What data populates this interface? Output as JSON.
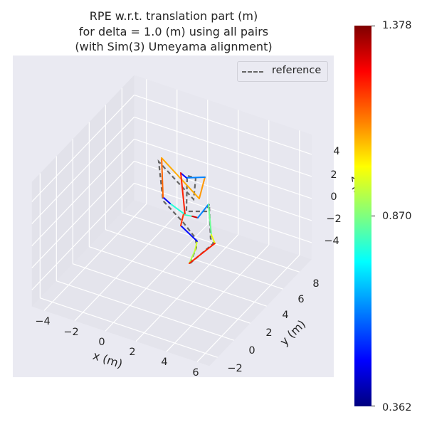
{
  "chart_data": {
    "type": "line3d",
    "title": [
      "RPE w.r.t. translation part (m)",
      "for delta = 1.0 (m) using all pairs",
      "(with Sim(3) Umeyama alignment)"
    ],
    "xlabel": "x (m)",
    "ylabel": "y (m)",
    "zlabel": "z (m)",
    "x_ticks": [
      "−4",
      "−2",
      "0",
      "2",
      "4",
      "6"
    ],
    "y_ticks": [
      "−2",
      "0",
      "2",
      "4",
      "6",
      "8"
    ],
    "z_ticks": [
      "4",
      "2",
      "0",
      "−2",
      "−4"
    ],
    "xlim": [
      -4.8,
      6.8
    ],
    "ylim": [
      -3,
      9.5
    ],
    "zlim": [
      -5.5,
      5.8
    ],
    "grid": true,
    "legend": {
      "placement": "top-right",
      "entries": [
        "reference"
      ]
    },
    "colorbar": {
      "colormap": "jet",
      "min": 0.362,
      "max": 1.378,
      "tick_labels": [
        "1.378",
        "0.870",
        "0.362"
      ]
    },
    "reference": {
      "name": "reference",
      "color": "#666666",
      "style": "dashed",
      "points": [
        [
          2.33,
          3,
          -2.92
        ],
        [
          2.74,
          3,
          -1.3
        ],
        [
          2.7,
          3,
          -0.49
        ],
        [
          1.86,
          3,
          0.61
        ],
        [
          0.56,
          3,
          1.94
        ],
        [
          0.28,
          3,
          5.35
        ],
        [
          2.56,
          3,
          2.99
        ],
        [
          2.7,
          3,
          4.99
        ],
        [
          2.14,
          3,
          4.93
        ],
        [
          2.09,
          3,
          1.68
        ],
        [
          3.4,
          3,
          2.29
        ],
        [
          3.58,
          3,
          3.02
        ],
        [
          3.67,
          3,
          -0.04
        ],
        [
          3.86,
          3,
          -0.4
        ],
        [
          2.33,
          3,
          -2.92
        ]
      ]
    },
    "estimate": {
      "points": [
        [
          2.28,
          3,
          -2.94
        ],
        [
          2.65,
          3,
          -1.61
        ],
        [
          2.79,
          3,
          -0.7
        ],
        [
          1.72,
          3,
          0.22
        ],
        [
          1.91,
          3,
          1.4
        ],
        [
          1.02,
          3,
          1.9
        ],
        [
          0.56,
          3,
          2.26
        ],
        [
          0.47,
          3,
          5.77
        ],
        [
          2.93,
          3,
          3.23
        ],
        [
          3.3,
          3,
          5.34
        ],
        [
          2.09,
          3,
          4.72
        ],
        [
          1.72,
          3,
          4.99
        ],
        [
          2.0,
          3,
          1.32
        ],
        [
          2.47,
          3,
          1.41
        ],
        [
          2.84,
          3,
          1.45
        ],
        [
          3.53,
          3,
          2.99
        ],
        [
          3.72,
          3,
          0.31
        ],
        [
          3.95,
          3,
          -0.36
        ],
        [
          2.28,
          3,
          -2.94
        ]
      ],
      "segment_errors": [
        0.92,
        0.95,
        0.5,
        1.2,
        0.78,
        0.48,
        1.15,
        1.08,
        1.1,
        0.62,
        0.5,
        1.22,
        0.8,
        1.3,
        0.62,
        0.85,
        0.98,
        1.22
      ]
    }
  }
}
